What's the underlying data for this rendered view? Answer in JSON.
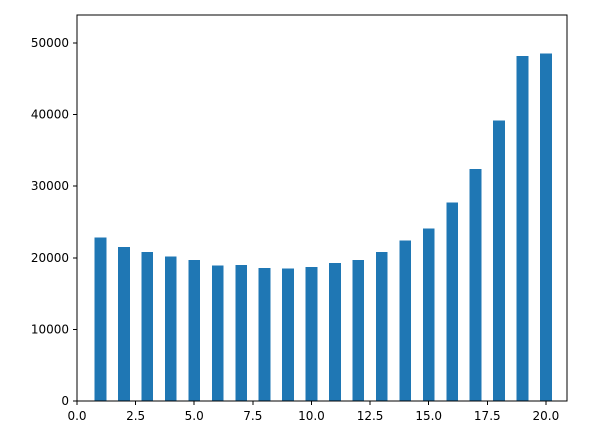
{
  "chart_data": {
    "type": "bar",
    "title": "",
    "xlabel": "",
    "ylabel": "",
    "x": [
      1,
      2,
      3,
      4,
      5,
      6,
      7,
      8,
      9,
      10,
      11,
      12,
      13,
      14,
      15,
      16,
      17,
      18,
      19,
      20
    ],
    "values": [
      22800,
      21500,
      20800,
      20200,
      19700,
      18900,
      19000,
      18600,
      18500,
      18700,
      19300,
      19700,
      20800,
      22400,
      24100,
      27700,
      32400,
      39200,
      48200,
      48500
    ],
    "bar_color": "#1f77b4",
    "bar_width_units": 0.5,
    "xlim": [
      0,
      20.9
    ],
    "ylim": [
      0,
      53900
    ],
    "xticks": [
      0,
      2.5,
      5,
      7.5,
      10,
      12.5,
      15,
      17.5,
      20
    ],
    "xtick_labels": [
      "0.0",
      "2.5",
      "5.0",
      "7.5",
      "10.0",
      "12.5",
      "15.0",
      "17.5",
      "20.0"
    ],
    "yticks": [
      0,
      10000,
      20000,
      30000,
      40000,
      50000
    ],
    "ytick_labels": [
      "0",
      "10000",
      "20000",
      "30000",
      "40000",
      "50000"
    ],
    "grid": false,
    "legend": "none",
    "axis_color": "#000000",
    "background_color": "#ffffff"
  }
}
